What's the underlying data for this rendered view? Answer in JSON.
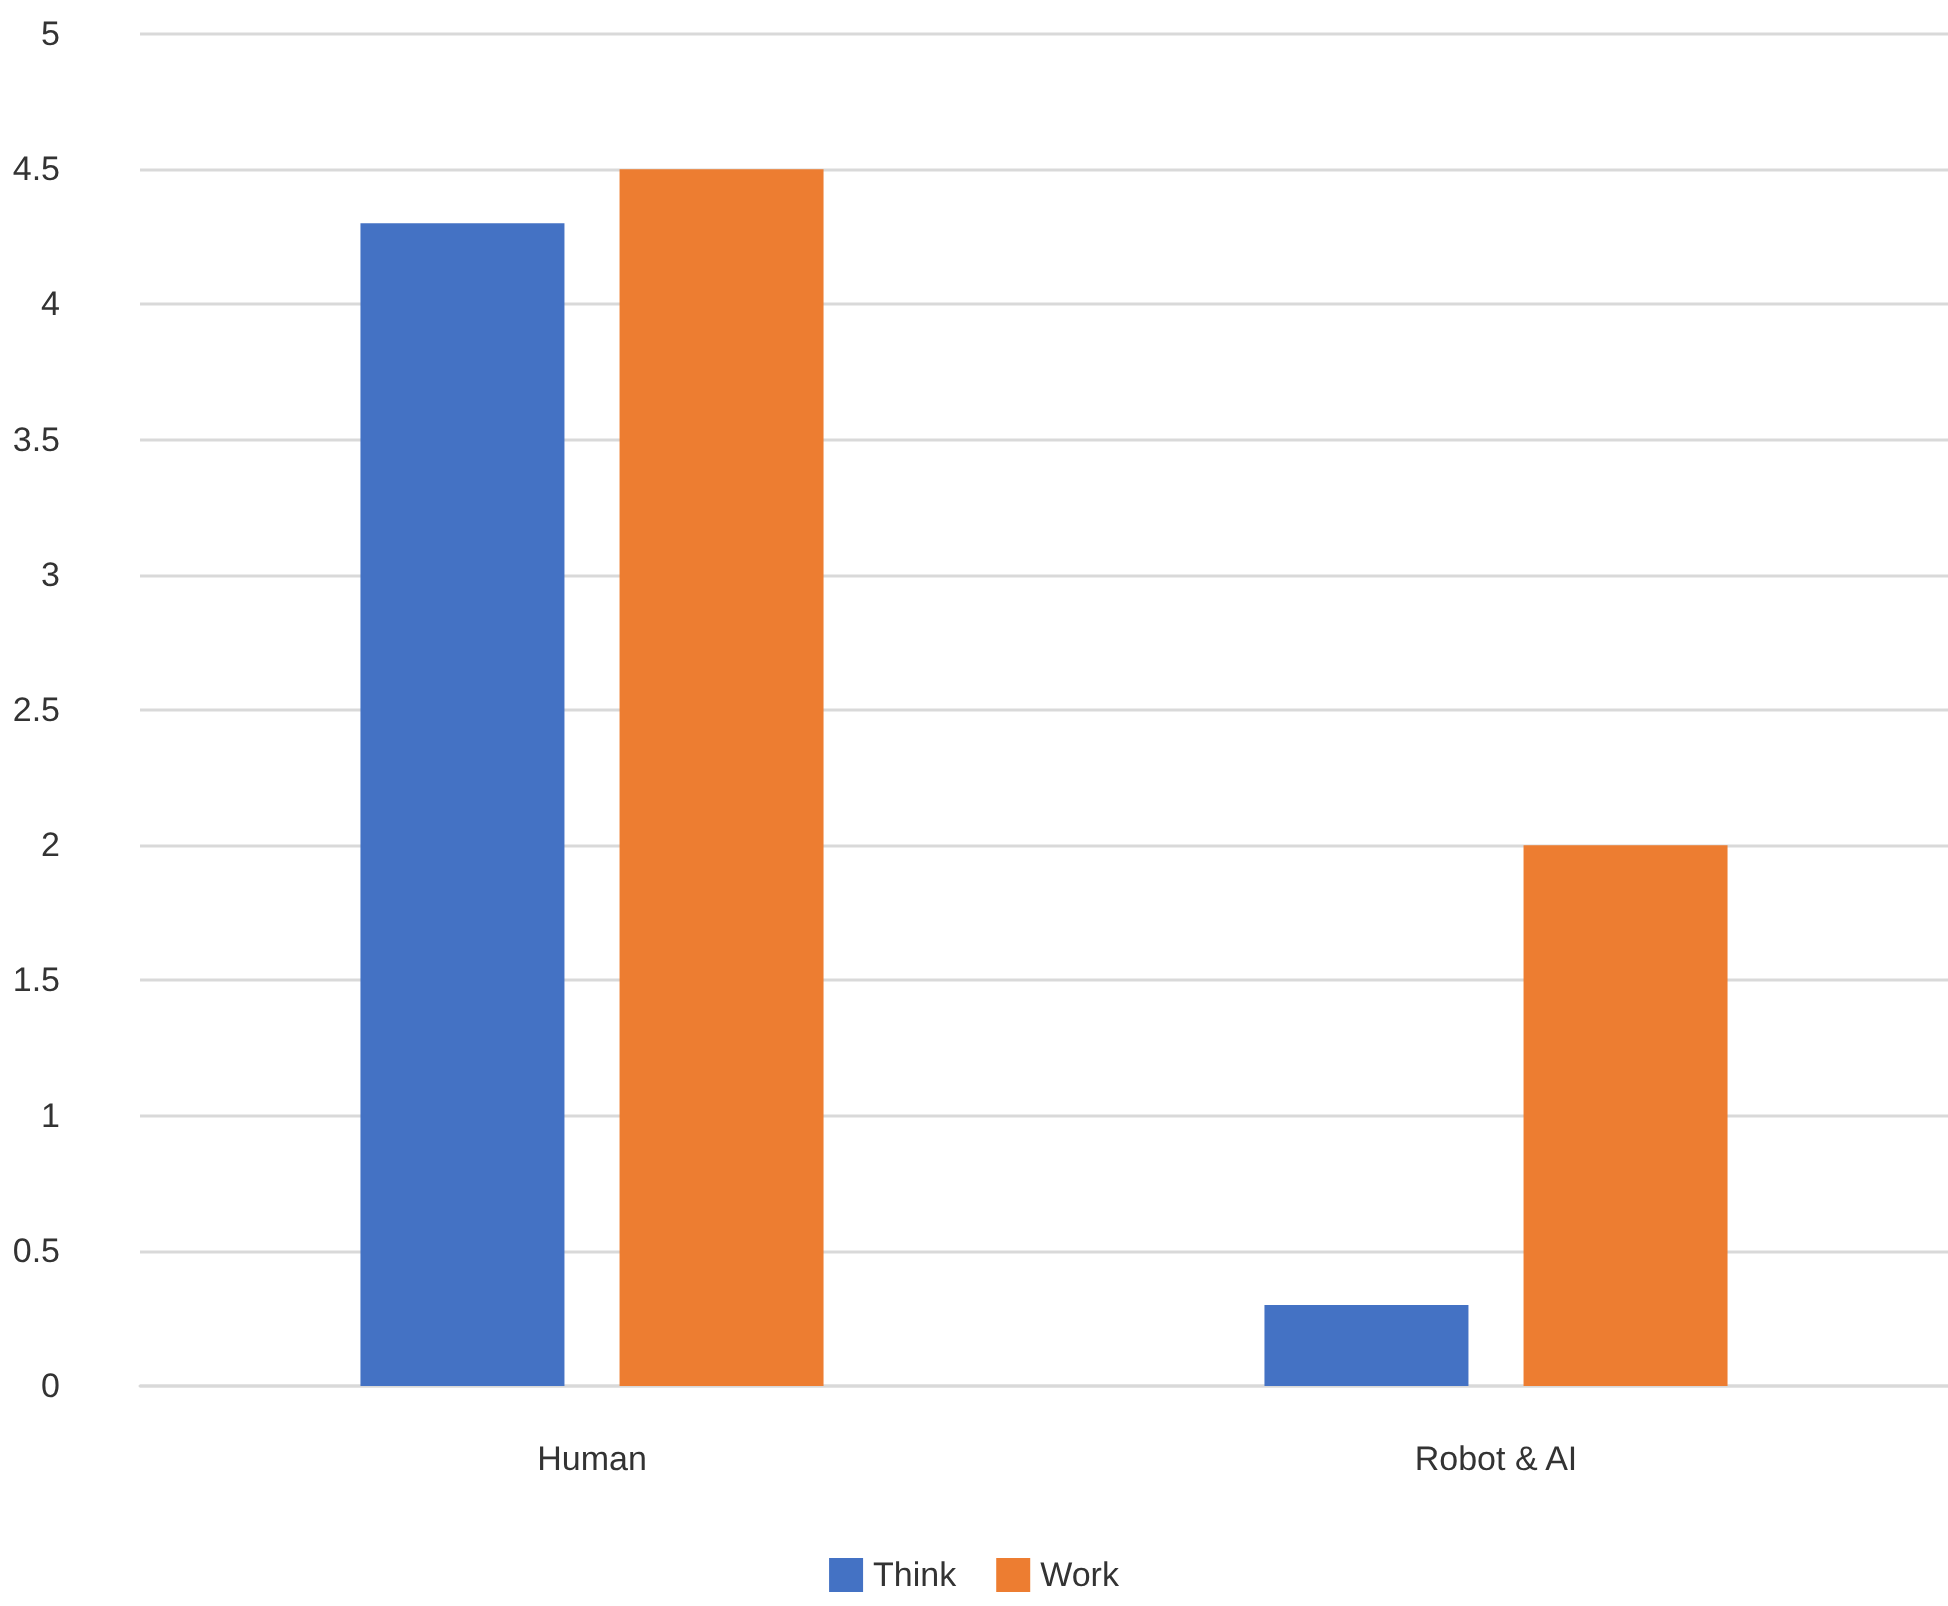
{
  "chart_data": {
    "type": "bar",
    "categories": [
      "Human",
      "Robot & AI"
    ],
    "series": [
      {
        "name": "Think",
        "color": "#4472c4",
        "values": [
          4.3,
          0.3
        ]
      },
      {
        "name": "Work",
        "color": "#ed7d31",
        "values": [
          4.5,
          2
        ]
      }
    ],
    "ylim": [
      0,
      5
    ],
    "yticks": [
      0,
      0.5,
      1,
      1.5,
      2,
      2.5,
      3,
      3.5,
      4,
      4.5,
      5
    ],
    "grid": "y",
    "legend": "bottom"
  }
}
